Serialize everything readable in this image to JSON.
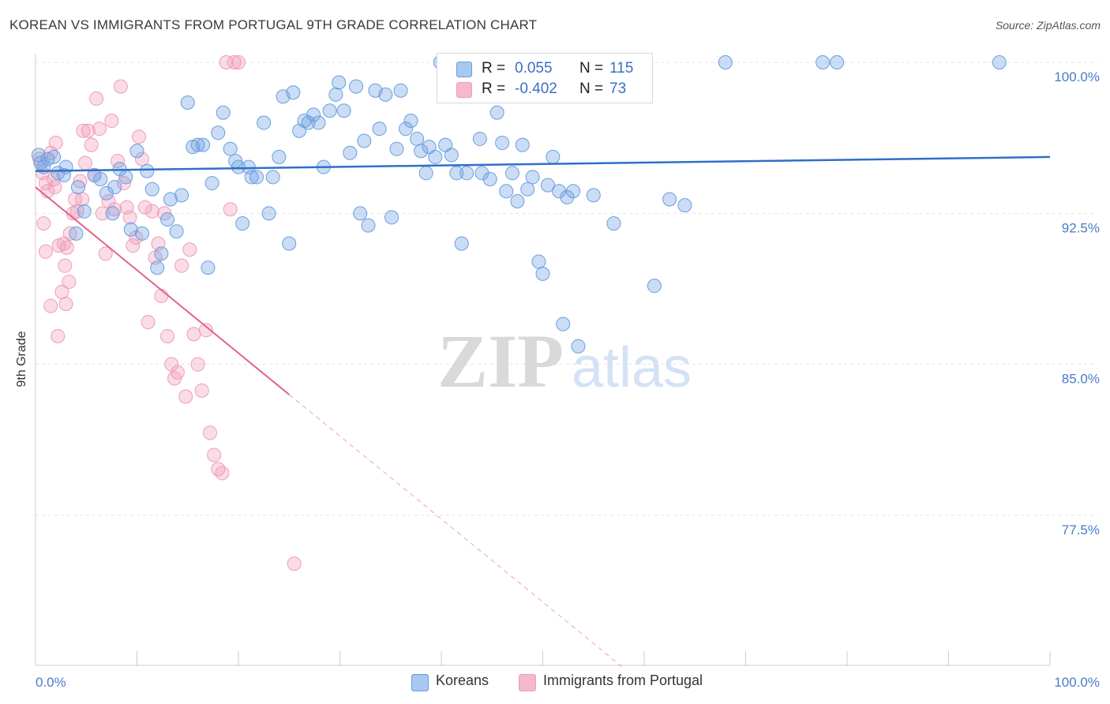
{
  "header": {
    "title": "KOREAN VS IMMIGRANTS FROM PORTUGAL 9TH GRADE CORRELATION CHART",
    "source": "Source: ZipAtlas.com"
  },
  "watermark": {
    "zip": "ZIP",
    "atlas": "atlas"
  },
  "legend": {
    "rows": [
      {
        "r_label": "R =",
        "r_value": "0.055",
        "n_label": "N =",
        "n_value": "115",
        "color": "#a9c8f0"
      },
      {
        "r_label": "R =",
        "r_value": "-0.402",
        "n_label": "N =",
        "n_value": "73",
        "color": "#f5b8cc"
      }
    ]
  },
  "bottom_legend": {
    "koreans": "Koreans",
    "portugal": "Immigrants from Portugal"
  },
  "chart_data": {
    "type": "scatter",
    "ylabel": "9th Grade",
    "xlabel": "",
    "xlim": [
      0,
      100
    ],
    "ylim": [
      70.0,
      101.5
    ],
    "x_tick_labels": {
      "left": "0.0%",
      "right": "100.0%"
    },
    "y_ticks": [
      {
        "value": 100.0,
        "label": "100.0%"
      },
      {
        "value": 92.5,
        "label": "92.5%"
      },
      {
        "value": 85.0,
        "label": "85.0%"
      },
      {
        "value": 77.5,
        "label": "77.5%"
      }
    ],
    "grid": true,
    "colors": {
      "koreans": "#6a9ee0",
      "portugal": "#f09bb8",
      "korean_line": "#2f6fc8",
      "portugal_line": "#e0628e"
    },
    "series": [
      {
        "name": "Koreans",
        "trend": {
          "x0": 0,
          "y0": 94.6,
          "x1": 100,
          "y1": 95.3
        },
        "points": [
          [
            0.3,
            95.4
          ],
          [
            0.5,
            95.0
          ],
          [
            0.8,
            94.8
          ],
          [
            1.2,
            95.2
          ],
          [
            1.8,
            95.3
          ],
          [
            2.2,
            94.5
          ],
          [
            2.8,
            94.4
          ],
          [
            3.0,
            94.8
          ],
          [
            4.2,
            93.8
          ],
          [
            4.8,
            92.6
          ],
          [
            4.0,
            91.5
          ],
          [
            5.8,
            94.4
          ],
          [
            6.4,
            94.2
          ],
          [
            7.0,
            93.5
          ],
          [
            7.6,
            92.5
          ],
          [
            7.8,
            93.8
          ],
          [
            8.3,
            94.7
          ],
          [
            8.9,
            94.3
          ],
          [
            9.4,
            91.7
          ],
          [
            10.0,
            95.6
          ],
          [
            10.5,
            91.5
          ],
          [
            11.0,
            94.6
          ],
          [
            11.5,
            93.7
          ],
          [
            12.0,
            89.8
          ],
          [
            12.4,
            90.5
          ],
          [
            13.0,
            92.2
          ],
          [
            13.3,
            93.2
          ],
          [
            13.9,
            91.6
          ],
          [
            14.4,
            93.4
          ],
          [
            15.0,
            98.0
          ],
          [
            15.5,
            95.8
          ],
          [
            16.0,
            95.9
          ],
          [
            16.5,
            95.9
          ],
          [
            17.0,
            89.8
          ],
          [
            17.4,
            94.0
          ],
          [
            18.0,
            96.5
          ],
          [
            18.5,
            97.5
          ],
          [
            19.2,
            95.7
          ],
          [
            19.7,
            95.1
          ],
          [
            20.0,
            94.8
          ],
          [
            20.4,
            92.0
          ],
          [
            21.0,
            94.8
          ],
          [
            21.3,
            94.3
          ],
          [
            21.8,
            94.3
          ],
          [
            22.5,
            97.0
          ],
          [
            23.0,
            92.5
          ],
          [
            23.4,
            94.3
          ],
          [
            24.0,
            95.3
          ],
          [
            24.4,
            98.3
          ],
          [
            25.0,
            91.0
          ],
          [
            25.4,
            98.5
          ],
          [
            26.0,
            96.6
          ],
          [
            26.5,
            97.1
          ],
          [
            26.9,
            97.0
          ],
          [
            27.4,
            97.4
          ],
          [
            27.9,
            97.0
          ],
          [
            28.4,
            94.8
          ],
          [
            29.0,
            97.6
          ],
          [
            29.6,
            98.4
          ],
          [
            29.9,
            99.0
          ],
          [
            30.4,
            97.6
          ],
          [
            31.0,
            95.5
          ],
          [
            31.6,
            98.8
          ],
          [
            32.0,
            92.5
          ],
          [
            32.4,
            96.1
          ],
          [
            32.8,
            91.9
          ],
          [
            33.5,
            98.6
          ],
          [
            33.9,
            96.7
          ],
          [
            34.5,
            98.4
          ],
          [
            35.1,
            92.3
          ],
          [
            35.6,
            95.7
          ],
          [
            36.0,
            98.6
          ],
          [
            36.5,
            96.7
          ],
          [
            37.0,
            97.1
          ],
          [
            37.6,
            96.2
          ],
          [
            38.0,
            95.6
          ],
          [
            38.5,
            94.5
          ],
          [
            38.8,
            95.8
          ],
          [
            39.4,
            95.3
          ],
          [
            39.9,
            100.0
          ],
          [
            40.4,
            95.9
          ],
          [
            41.0,
            95.4
          ],
          [
            41.5,
            94.5
          ],
          [
            42.0,
            91.0
          ],
          [
            42.5,
            94.5
          ],
          [
            43.0,
            98.4
          ],
          [
            43.8,
            96.2
          ],
          [
            44.0,
            94.5
          ],
          [
            44.8,
            94.2
          ],
          [
            45.5,
            97.5
          ],
          [
            46.0,
            96.0
          ],
          [
            46.4,
            93.6
          ],
          [
            47.0,
            94.5
          ],
          [
            47.5,
            93.1
          ],
          [
            48.0,
            95.9
          ],
          [
            48.5,
            93.7
          ],
          [
            49.0,
            94.3
          ],
          [
            49.6,
            90.1
          ],
          [
            50.0,
            89.5
          ],
          [
            50.5,
            93.9
          ],
          [
            51.0,
            95.3
          ],
          [
            51.6,
            93.6
          ],
          [
            52.0,
            87.0
          ],
          [
            52.4,
            93.3
          ],
          [
            53.0,
            93.6
          ],
          [
            53.5,
            85.9
          ],
          [
            55.0,
            93.4
          ],
          [
            57.0,
            92.0
          ],
          [
            61.0,
            88.9
          ],
          [
            62.5,
            93.2
          ],
          [
            64.0,
            92.9
          ],
          [
            68.0,
            100.0
          ],
          [
            77.6,
            100.0
          ],
          [
            79.0,
            100.0
          ],
          [
            95.0,
            100.0
          ]
        ]
      },
      {
        "name": "Immigrants from Portugal",
        "trend": {
          "x0": 0,
          "y0": 93.8,
          "x1": 25.0,
          "y1": 83.5
        },
        "points": [
          [
            0.4,
            95.2
          ],
          [
            0.7,
            94.5
          ],
          [
            1.0,
            94.0
          ],
          [
            1.2,
            93.6
          ],
          [
            1.5,
            95.5
          ],
          [
            1.8,
            94.2
          ],
          [
            2.0,
            96.0
          ],
          [
            2.3,
            90.9
          ],
          [
            2.6,
            88.6
          ],
          [
            2.9,
            89.9
          ],
          [
            3.1,
            90.8
          ],
          [
            3.4,
            91.5
          ],
          [
            3.7,
            92.5
          ],
          [
            3.9,
            93.2
          ],
          [
            4.1,
            92.6
          ],
          [
            4.4,
            94.1
          ],
          [
            4.7,
            96.6
          ],
          [
            4.9,
            95.0
          ],
          [
            5.2,
            96.6
          ],
          [
            5.5,
            95.9
          ],
          [
            5.8,
            94.4
          ],
          [
            6.0,
            98.2
          ],
          [
            6.3,
            96.7
          ],
          [
            6.6,
            92.5
          ],
          [
            6.9,
            90.5
          ],
          [
            7.2,
            93.1
          ],
          [
            7.5,
            97.1
          ],
          [
            7.8,
            92.7
          ],
          [
            8.1,
            95.1
          ],
          [
            8.4,
            98.8
          ],
          [
            8.7,
            94.0
          ],
          [
            9.0,
            92.8
          ],
          [
            9.3,
            92.3
          ],
          [
            9.6,
            90.9
          ],
          [
            9.9,
            91.3
          ],
          [
            10.2,
            96.3
          ],
          [
            10.5,
            95.2
          ],
          [
            10.8,
            92.8
          ],
          [
            11.1,
            87.1
          ],
          [
            11.5,
            92.6
          ],
          [
            11.8,
            90.3
          ],
          [
            12.1,
            91.0
          ],
          [
            12.4,
            88.4
          ],
          [
            12.7,
            92.5
          ],
          [
            13.0,
            86.4
          ],
          [
            13.4,
            85.0
          ],
          [
            13.7,
            84.3
          ],
          [
            14.0,
            84.6
          ],
          [
            14.4,
            89.9
          ],
          [
            14.8,
            83.4
          ],
          [
            15.2,
            90.7
          ],
          [
            15.6,
            86.5
          ],
          [
            16.0,
            85.0
          ],
          [
            16.4,
            83.7
          ],
          [
            16.8,
            86.7
          ],
          [
            17.2,
            81.6
          ],
          [
            17.6,
            80.5
          ],
          [
            18.0,
            79.8
          ],
          [
            18.4,
            79.6
          ],
          [
            18.8,
            100.0
          ],
          [
            19.2,
            92.7
          ],
          [
            19.6,
            100.0
          ],
          [
            20.0,
            100.0
          ],
          [
            3.0,
            88.0
          ],
          [
            1.5,
            87.9
          ],
          [
            2.2,
            86.4
          ],
          [
            1.0,
            90.6
          ],
          [
            2.8,
            91.0
          ],
          [
            3.3,
            89.1
          ],
          [
            0.8,
            92.0
          ],
          [
            25.5,
            75.1
          ],
          [
            4.6,
            93.2
          ],
          [
            1.9,
            93.8
          ]
        ]
      }
    ]
  }
}
